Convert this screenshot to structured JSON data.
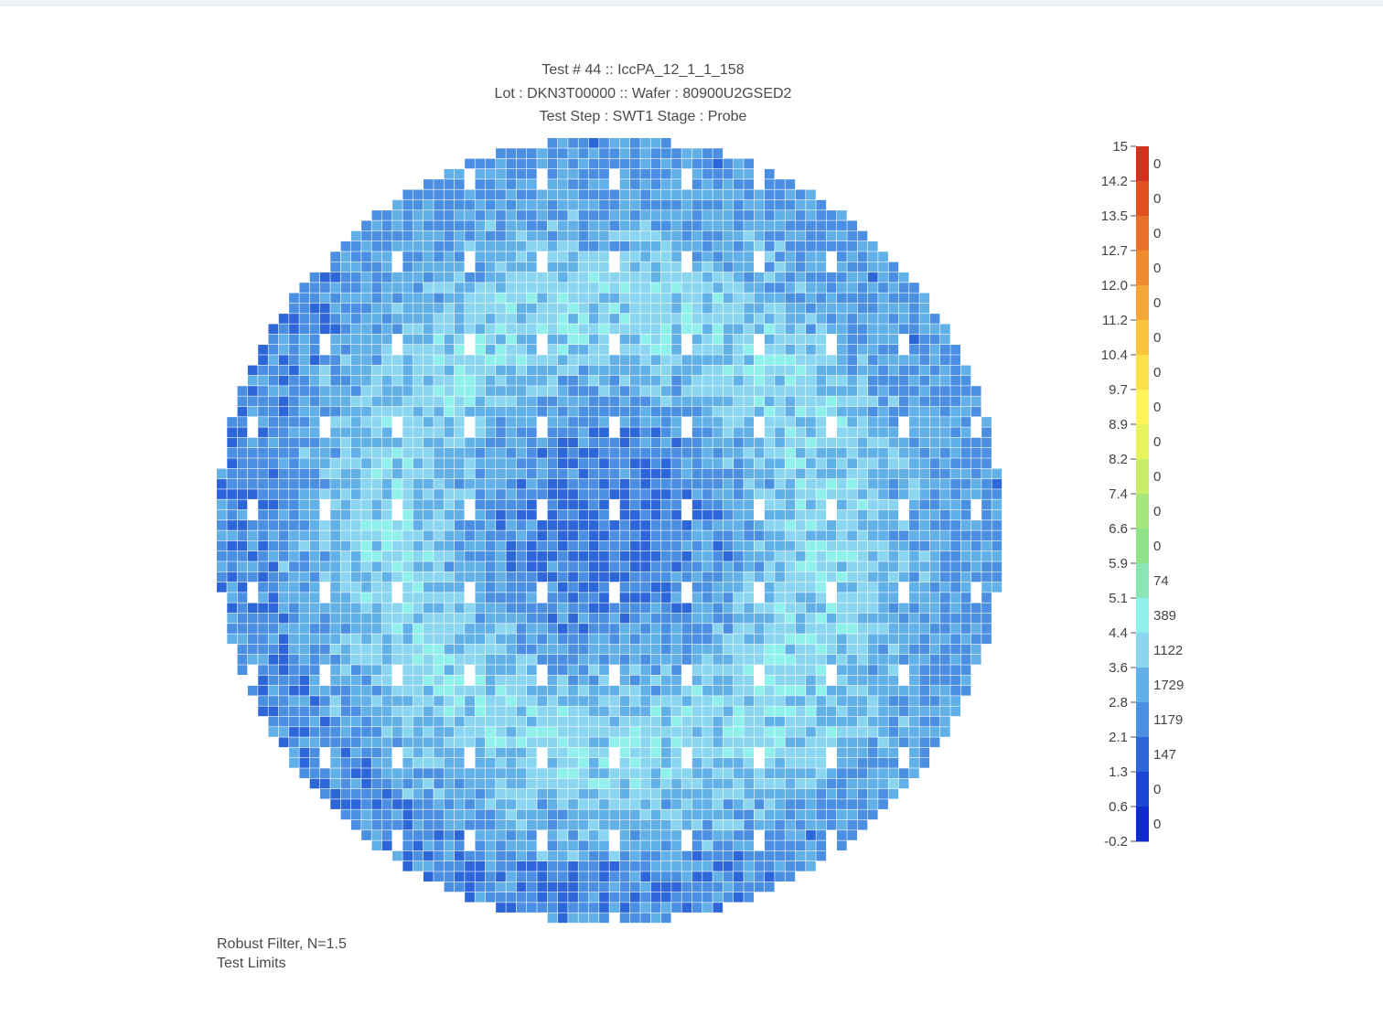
{
  "chart_data": {
    "type": "heatmap",
    "title_lines": [
      "Test #  44 :: IccPA_12_1_1_158",
      "Lot : DKN3T00000 :: Wafer : 80900U2GSED2",
      "Test Step : SWT1 Stage : Probe"
    ],
    "xlabel": "",
    "ylabel": "",
    "colorbar": {
      "range": [
        -0.2,
        15
      ],
      "tick_labels": [
        "15",
        "14.2",
        "13.5",
        "12.7",
        "12.0",
        "11.2",
        "10.4",
        "9.7",
        "8.9",
        "8.2",
        "7.4",
        "6.6",
        "5.9",
        "5.1",
        "4.4",
        "3.6",
        "2.8",
        "2.1",
        "1.3",
        "0.6",
        "-0.2"
      ],
      "bin_counts": [
        0,
        0,
        0,
        0,
        0,
        0,
        0,
        0,
        0,
        0,
        0,
        0,
        74,
        389,
        1122,
        1729,
        1179,
        147,
        0,
        0
      ],
      "bin_colors": [
        "#d7301f",
        "#e2501f",
        "#e8712a",
        "#f08c2e",
        "#f4a637",
        "#f8c43e",
        "#fae04a",
        "#fff45b",
        "#e7f45c",
        "#c7ec68",
        "#a7e67a",
        "#8fe28a",
        "#8be6b6",
        "#8ff0ec",
        "#8ad6f0",
        "#62b0e8",
        "#4a8fe2",
        "#2d66d8",
        "#1a45d6",
        "#0f2ad2"
      ]
    },
    "wafer_map_grid": {
      "cols": 76,
      "rows": 76,
      "value_range": [
        -0.2,
        15
      ]
    }
  },
  "footnote": {
    "line1": "Robust Filter, N=1.5",
    "line2": "Test Limits"
  }
}
